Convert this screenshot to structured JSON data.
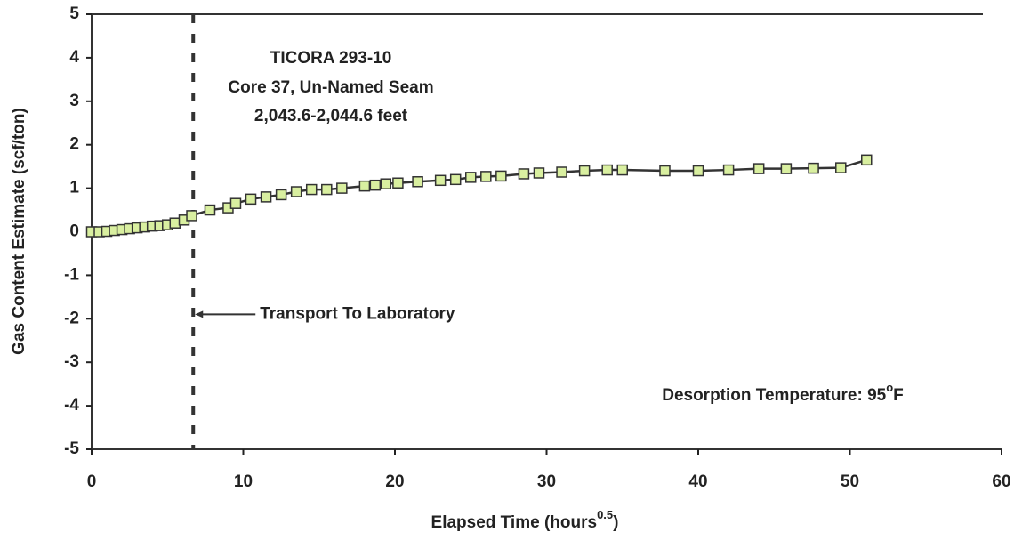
{
  "chart_data": {
    "type": "line",
    "title": [
      "TICORA 293-10",
      "Core 37, Un-Named Seam",
      "2,043.6-2,044.6 feet"
    ],
    "xlabel": {
      "text": "Elapsed Time (hours",
      "superscript": "0.5",
      "suffix": ")"
    },
    "ylabel": "Gas Content Estimate (scf/ton)",
    "x": [
      0,
      0.5,
      1,
      1.5,
      2,
      2.5,
      3,
      3.5,
      4,
      4.5,
      5,
      5.5,
      6.1,
      6.6,
      7.8,
      9,
      9.5,
      10.5,
      11.5,
      12.5,
      13.5,
      14.5,
      15.5,
      16.5,
      18,
      18.7,
      19.4,
      20.2,
      21.5,
      23,
      24,
      25,
      26,
      27,
      28.5,
      29.5,
      31,
      32.5,
      34,
      35,
      37.8,
      40,
      42,
      44,
      45.8,
      47.6,
      49.4,
      51.1
    ],
    "series": [
      {
        "color": "#d9efa0",
        "values": [
          0,
          0,
          0.01,
          0.03,
          0.05,
          0.07,
          0.09,
          0.11,
          0.13,
          0.14,
          0.16,
          0.2,
          0.27,
          0.37,
          0.5,
          0.55,
          0.65,
          0.75,
          0.8,
          0.85,
          0.92,
          0.97,
          0.97,
          1.0,
          1.05,
          1.07,
          1.1,
          1.12,
          1.15,
          1.18,
          1.2,
          1.25,
          1.27,
          1.28,
          1.33,
          1.35,
          1.37,
          1.4,
          1.42,
          1.42,
          1.4,
          1.4,
          1.42,
          1.45,
          1.45,
          1.46,
          1.47,
          1.65
        ]
      }
    ],
    "xlim": [
      0,
      60
    ],
    "xticks": [
      0,
      10,
      20,
      30,
      40,
      50,
      60
    ],
    "ylim": [
      -5,
      5
    ],
    "yticks": [
      -5,
      -4,
      -3,
      -2,
      -1,
      0,
      1,
      2,
      3,
      4,
      5
    ],
    "transport": {
      "x": 6.7,
      "y": -1.9,
      "label": "Transport To Laboratory"
    },
    "temperature": {
      "text": "Desorption Temperature: 95",
      "superscript": "o",
      "suffix": "F"
    }
  }
}
